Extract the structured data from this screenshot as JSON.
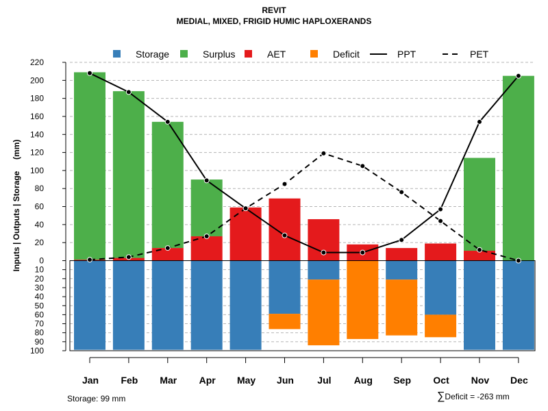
{
  "header": {
    "title_line1": "REVIT",
    "title_line2": "MEDIAL, MIXED, FRIGID HUMIC HAPLOXERANDS"
  },
  "footer": {
    "storage_text": "Storage: 99 mm",
    "deficit_symbol": "∑",
    "deficit_text": "Deficit = -263 mm"
  },
  "chart_data": {
    "type": "bar",
    "title": "REVIT — MEDIAL, MIXED, FRIGID HUMIC HAPLOXERANDS",
    "ylabel": "Inputs | Outputs | Storage     (mm)",
    "categories": [
      "Jan",
      "Feb",
      "Mar",
      "Apr",
      "May",
      "Jun",
      "Jul",
      "Aug",
      "Sep",
      "Oct",
      "Nov",
      "Dec"
    ],
    "upper_ylim": [
      0,
      220
    ],
    "upper_ticks": [
      0,
      20,
      40,
      60,
      80,
      100,
      120,
      140,
      160,
      180,
      200,
      220
    ],
    "lower_ylim": [
      0,
      100
    ],
    "lower_ticks": [
      10,
      20,
      30,
      40,
      50,
      60,
      70,
      80,
      90,
      100
    ],
    "legend": [
      {
        "label": "Storage",
        "kind": "square",
        "color": "#377eb8"
      },
      {
        "label": "Surplus",
        "kind": "square",
        "color": "#4daf4a"
      },
      {
        "label": "AET",
        "kind": "square",
        "color": "#e41a1c"
      },
      {
        "label": "Deficit",
        "kind": "square",
        "color": "#ff7f00"
      },
      {
        "label": "PPT",
        "kind": "solid-line",
        "color": "#000000"
      },
      {
        "label": "PET",
        "kind": "dashed-line",
        "color": "#000000"
      }
    ],
    "series": [
      {
        "name": "AET",
        "values": [
          1,
          3,
          14,
          27,
          59,
          69,
          46,
          18,
          14,
          19,
          11,
          0
        ],
        "color": "#e41a1c"
      },
      {
        "name": "Surplus",
        "values": [
          208,
          185,
          140,
          63,
          0,
          0,
          0,
          0,
          0,
          0,
          103,
          205
        ],
        "color": "#4daf4a"
      },
      {
        "name": "Storage",
        "values": [
          99,
          99,
          99,
          99,
          99,
          59,
          21,
          0,
          21,
          60,
          99,
          99
        ],
        "color": "#377eb8"
      },
      {
        "name": "Deficit",
        "values": [
          0,
          0,
          0,
          0,
          0,
          17,
          73,
          87,
          62,
          25,
          0,
          0
        ],
        "color": "#ff7f00"
      },
      {
        "name": "PPT",
        "values": [
          208,
          187,
          154,
          89,
          58,
          28,
          9,
          9,
          23,
          57,
          154,
          205
        ],
        "color": "#000000"
      },
      {
        "name": "PET",
        "values": [
          1,
          4,
          14,
          27,
          58,
          85,
          119,
          105,
          76,
          44,
          12,
          0
        ],
        "color": "#000000"
      }
    ]
  }
}
